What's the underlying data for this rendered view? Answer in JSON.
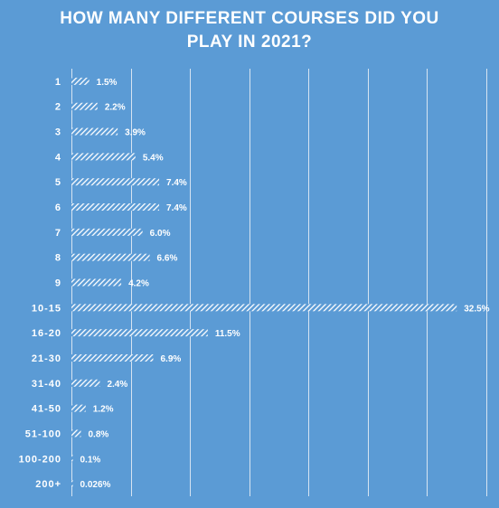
{
  "chart_data": {
    "type": "bar",
    "orientation": "horizontal",
    "title_line1": "HOW MANY DIFFERENT COURSES DID YOU",
    "title_line2": "PLAY IN 2021?",
    "categories": [
      "1",
      "2",
      "3",
      "4",
      "5",
      "6",
      "7",
      "8",
      "9",
      "10-15",
      "16-20",
      "21-30",
      "31-40",
      "41-50",
      "51-100",
      "100-200",
      "200+"
    ],
    "values": [
      1.5,
      2.2,
      3.9,
      5.4,
      7.4,
      7.4,
      6.0,
      6.6,
      4.2,
      32.5,
      11.5,
      6.9,
      2.4,
      1.2,
      0.8,
      0.1,
      0.026
    ],
    "data_labels": [
      "1.5%",
      "2.2%",
      "3.9%",
      "5.4%",
      "7.4%",
      "7.4%",
      "6.0%",
      "6.6%",
      "4.2%",
      "32.5%",
      "11.5%",
      "6.9%",
      "2.4%",
      "1.2%",
      "0.8%",
      "0.1%",
      "0.026%"
    ],
    "xlim": [
      0,
      35
    ],
    "grid": true,
    "bar_pattern": "diagonal-hatch",
    "colors": {
      "background": "#5b9bd5",
      "bar": "#ffffff",
      "grid": "#d6e4f2",
      "text": "#ffffff"
    }
  }
}
